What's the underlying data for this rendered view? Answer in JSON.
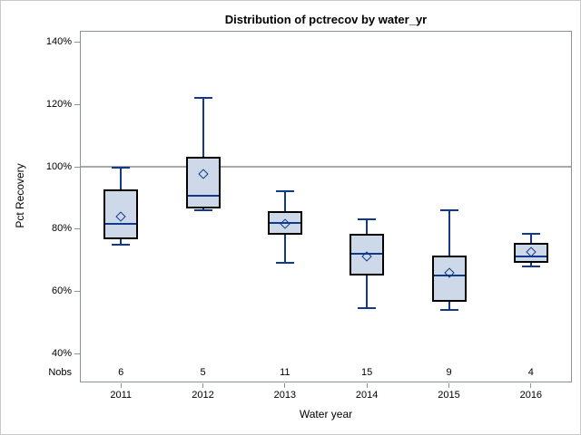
{
  "title": "Distribution of pctrecov by water_yr",
  "y_axis": {
    "label": "Pct Recovery",
    "ticks": [
      {
        "label": "140%",
        "value": 140
      },
      {
        "label": "120%",
        "value": 120
      },
      {
        "label": "100%",
        "value": 100
      },
      {
        "label": "80%",
        "value": 80
      },
      {
        "label": "60%",
        "value": 60
      },
      {
        "label": "40%",
        "value": 40
      }
    ]
  },
  "x_axis": {
    "label": "Water year",
    "nobs_label": "Nobs"
  },
  "colors": {
    "box_fill": "#cdd8e9",
    "box_border": "#000000",
    "line": "#11398b",
    "frame": "#8d9296",
    "reference_line": "#a9a9a9",
    "text": "#000000",
    "background": "#ffffff",
    "outer_border": "#c9c9c9"
  },
  "chart_data": {
    "type": "box",
    "title": "Distribution of pctrecov by water_yr",
    "xlabel": "Water year",
    "ylabel": "Pct Recovery",
    "categories": [
      "2011",
      "2012",
      "2013",
      "2014",
      "2015",
      "2016"
    ],
    "nobs": [
      6,
      5,
      11,
      15,
      9,
      4
    ],
    "reference_line": 100,
    "ylim": [
      40,
      145
    ],
    "y_tick_values": [
      140,
      120,
      100,
      80,
      60,
      40
    ],
    "legend": "none",
    "grid": "off",
    "boxes": [
      {
        "year": "2011",
        "n": 6,
        "min": 75,
        "q1": 76.5,
        "median": 81.5,
        "mean": 84,
        "q3": 92.5,
        "max": 99.5
      },
      {
        "year": "2012",
        "n": 5,
        "min": 86,
        "q1": 86.5,
        "median": 90.5,
        "mean": 97.5,
        "q3": 103,
        "max": 122
      },
      {
        "year": "2013",
        "n": 11,
        "min": 69,
        "q1": 78,
        "median": 82,
        "mean": 81.5,
        "q3": 85.5,
        "max": 92
      },
      {
        "year": "2014",
        "n": 15,
        "min": 54.5,
        "q1": 65,
        "median": 72,
        "mean": 71,
        "q3": 78.5,
        "max": 83
      },
      {
        "year": "2015",
        "n": 9,
        "min": 54,
        "q1": 56.5,
        "median": 65,
        "mean": 66,
        "q3": 71.5,
        "max": 86
      },
      {
        "year": "2016",
        "n": 4,
        "min": 68,
        "q1": 69,
        "median": 71,
        "mean": 72.5,
        "q3": 75.5,
        "max": 78.5
      }
    ]
  }
}
